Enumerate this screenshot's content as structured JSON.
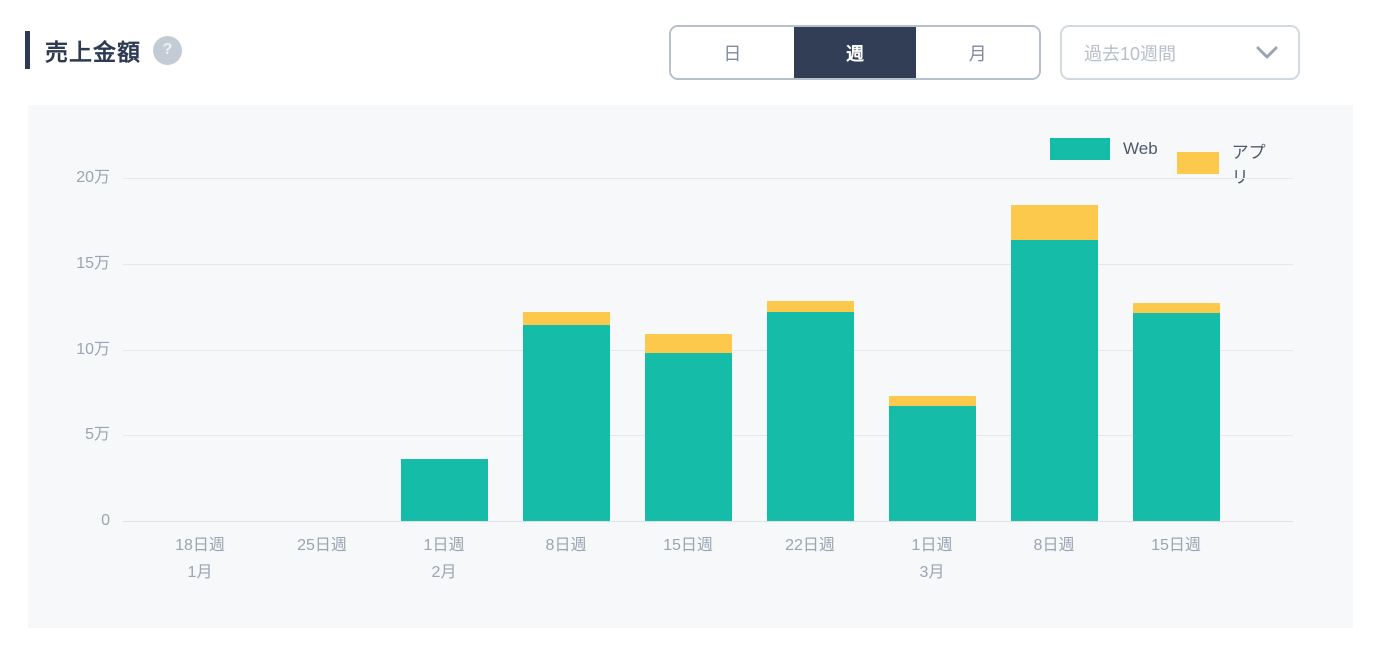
{
  "header": {
    "title": "売上金額",
    "help_glyph": "?",
    "tabs": [
      {
        "key": "day",
        "label": "日",
        "selected": false
      },
      {
        "key": "week",
        "label": "週",
        "selected": true
      },
      {
        "key": "month",
        "label": "月",
        "selected": false
      }
    ],
    "range_select": {
      "value": "過去10週間"
    }
  },
  "colors": {
    "web": "#15bca7",
    "app": "#fcc94d",
    "tab_selected_bg": "#323e55",
    "accent": "#2d3a52",
    "panel_bg": "#f6f8fa",
    "gridline": "#e4e8ee"
  },
  "chart_data": {
    "type": "bar",
    "stacked": true,
    "title": "売上金額",
    "unit": "万円 (10k yen)",
    "grid": true,
    "legend_position": "top-right",
    "categories": [
      {
        "week": "18日週",
        "month": "1月"
      },
      {
        "week": "25日週",
        "month": ""
      },
      {
        "week": "1日週",
        "month": "2月"
      },
      {
        "week": "8日週",
        "month": ""
      },
      {
        "week": "15日週",
        "month": ""
      },
      {
        "week": "22日週",
        "month": ""
      },
      {
        "week": "1日週",
        "month": "3月"
      },
      {
        "week": "8日週",
        "month": ""
      },
      {
        "week": "15日週",
        "month": ""
      }
    ],
    "series": [
      {
        "name": "Web",
        "color": "#15bca7",
        "values": [
          0,
          0,
          3.6,
          11.4,
          9.8,
          12.2,
          6.7,
          16.4,
          12.1
        ]
      },
      {
        "name": "アプリ",
        "color": "#fcc94d",
        "values": [
          0,
          0,
          0,
          0.8,
          1.1,
          0.6,
          0.6,
          2.0,
          0.6
        ]
      }
    ],
    "totals": [
      0,
      0,
      3.6,
      12.2,
      10.9,
      12.8,
      7.3,
      18.4,
      12.7
    ],
    "y_ticks": [
      {
        "label": "20万",
        "value": 20
      },
      {
        "label": "15万",
        "value": 15
      },
      {
        "label": "10万",
        "value": 10
      },
      {
        "label": "5万",
        "value": 5
      },
      {
        "label": "0",
        "value": 0
      }
    ],
    "ylim": [
      0,
      20
    ],
    "xlabel": "",
    "ylabel": ""
  }
}
